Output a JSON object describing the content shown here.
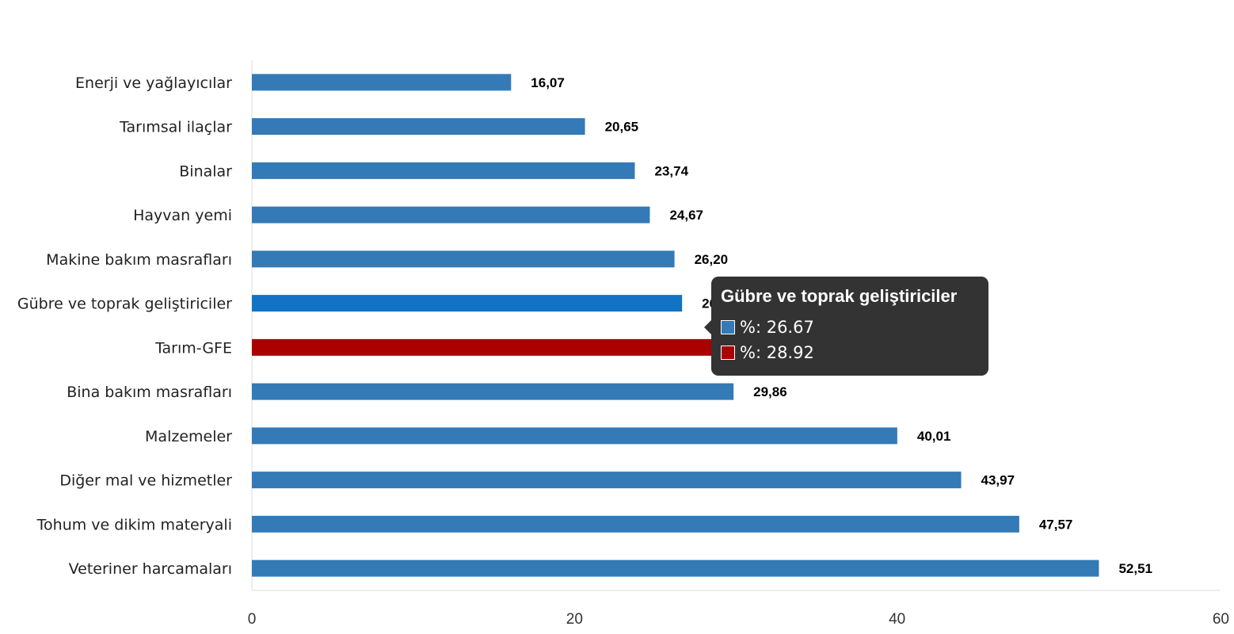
{
  "chart_data": {
    "type": "bar",
    "orientation": "horizontal",
    "categories": [
      "Enerji  ve yağlayıcılar",
      "Tarımsal ilaçlar",
      "Binalar",
      "Hayvan yemi",
      "Makine bakım masrafları",
      "Gübre ve toprak geliştiriciler",
      "Tarım-GFE",
      "Bina bakım masrafları",
      "Malzemeler",
      "Diğer mal ve hizmetler",
      "Tohum ve dikim materyali",
      "Veteriner harcamaları"
    ],
    "values": [
      16.07,
      20.65,
      23.74,
      24.67,
      26.2,
      26.67,
      28.92,
      29.86,
      40.01,
      43.97,
      47.57,
      52.51
    ],
    "value_labels": [
      "16,07",
      "20,65",
      "23,74",
      "24,67",
      "26,20",
      "26,67",
      "28,92",
      "29,86",
      "40,01",
      "43,97",
      "47,57",
      "52,51"
    ],
    "bar_colors": [
      "#337ab7",
      "#337ab7",
      "#337ab7",
      "#337ab7",
      "#337ab7",
      "#1273c5",
      "#aa0000",
      "#337ab7",
      "#337ab7",
      "#337ab7",
      "#337ab7",
      "#337ab7"
    ],
    "xlim": [
      0,
      60
    ],
    "x_ticks": [
      0,
      20,
      40,
      60
    ],
    "x_tick_labels": [
      "0",
      "20",
      "40",
      "60"
    ],
    "grid": false,
    "legend": "none"
  },
  "tooltip": {
    "title": "Gübre ve toprak geliştiriciler",
    "rows": [
      {
        "text": "%: 26.67",
        "color": "#337ab7"
      },
      {
        "text": "%: 28.92",
        "color": "#aa0000"
      }
    ]
  }
}
